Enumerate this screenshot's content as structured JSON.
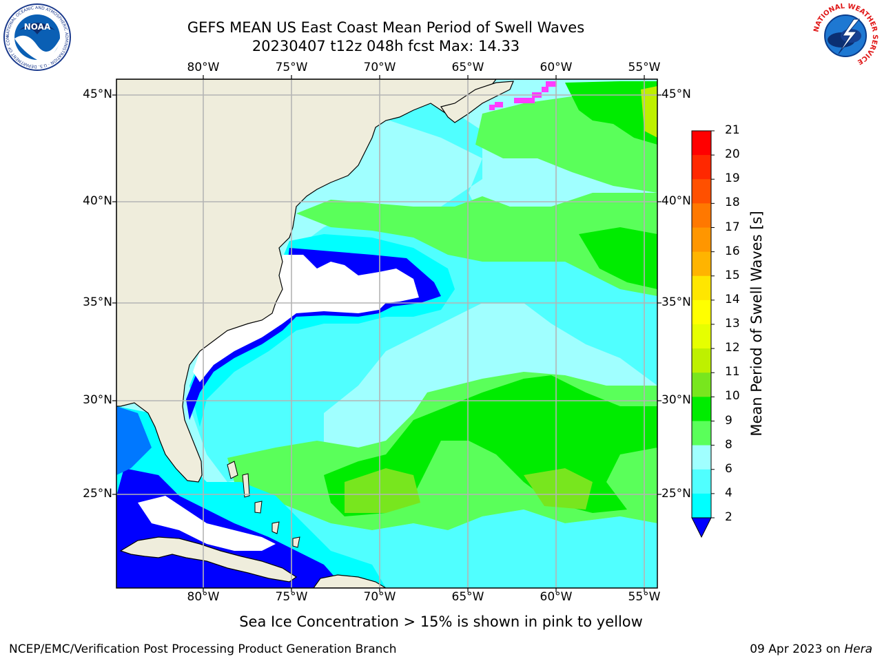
{
  "title": {
    "line1": "GEFS MEAN US East Coast Mean Period of Swell Waves",
    "line2": "20230407 t12z 048h fcst   Max: 14.33"
  },
  "axes": {
    "lon_labels": [
      "80°W",
      "75°W",
      "70°W",
      "65°W",
      "60°W",
      "55°W"
    ],
    "lat_labels": [
      "45°N",
      "40°N",
      "35°N",
      "30°N",
      "25°N"
    ]
  },
  "colorbar": {
    "title": "Mean Period of Swell Waves [s]",
    "ticks": [
      "21",
      "20",
      "19",
      "18",
      "17",
      "16",
      "15",
      "14",
      "13",
      "12",
      "11",
      "10",
      "9",
      "8",
      "6",
      "4",
      "2"
    ],
    "colors": [
      "#ff0000",
      "#ff2800",
      "#ff5000",
      "#ff7800",
      "#ff9600",
      "#ffb400",
      "#ffe600",
      "#ffff00",
      "#e6ff00",
      "#bef000",
      "#78e61e",
      "#00ec00",
      "#5aff5a",
      "#a0ffff",
      "#50ffff",
      "#00ffff",
      "#00beff",
      "#0078ff",
      "#0000ff"
    ],
    "color_names": [
      "21",
      "20",
      "19",
      "18",
      "17",
      "16",
      "15",
      "14",
      "13",
      "12",
      "11",
      "10",
      "9",
      "8",
      "6",
      "4",
      "2"
    ]
  },
  "map": {
    "land_color": "#efeddc",
    "grid_color": "#b4b4b4",
    "ice_color": "#ff3cff"
  },
  "logos": {
    "noaa_text": "NOAA",
    "noaa_ring": "NATIONAL OCEANIC AND ATMOSPHERIC ADMINISTRATION · U.S. DEPARTMENT OF COMMERCE",
    "nws_ring": "NATIONAL WEATHER SERVICE"
  },
  "caption": "Sea Ice Concentration > 15% is shown in pink to yellow",
  "footer": {
    "left": "NCEP/EMC/Verification Post Processing Product Generation Branch",
    "right_date": "09 Apr 2023 on ",
    "right_machine": "Hera"
  }
}
